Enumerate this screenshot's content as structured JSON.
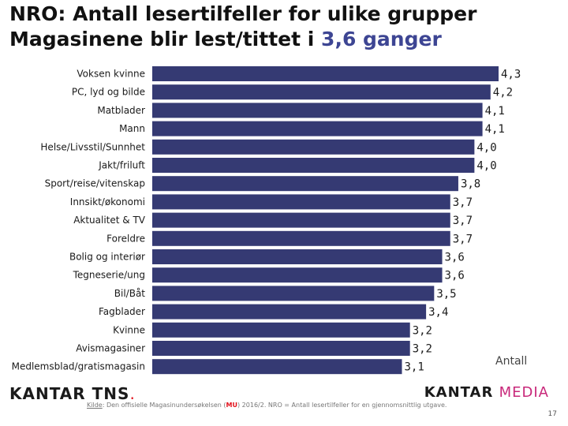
{
  "title": {
    "line1": "NRO: Antall lesertilfeller for ulike grupper",
    "line2_prefix": "Magasinene blir lest/tittet i ",
    "line2_accent": "3,6 ganger"
  },
  "chart_data": {
    "type": "bar",
    "orientation": "horizontal",
    "categories": [
      "Voksen kvinne",
      "PC, lyd og bilde",
      "Matblader",
      "Mann",
      "Helse/Livsstil/Sunnhet",
      "Jakt/friluft",
      "Sport/reise/vitenskap",
      "Innsikt/økonomi",
      "Aktualitet & TV",
      "Foreldre",
      "Bolig og interiør",
      "Tegneserie/ung",
      "Bil/Båt",
      "Fagblader",
      "Kvinne",
      "Avismagasiner",
      "Medlemsblad/gratismagasin"
    ],
    "values": [
      4.3,
      4.2,
      4.1,
      4.1,
      4.0,
      4.0,
      3.8,
      3.7,
      3.7,
      3.7,
      3.6,
      3.6,
      3.5,
      3.4,
      3.2,
      3.2,
      3.1
    ],
    "value_labels": [
      "4,3",
      "4,2",
      "4,1",
      "4,1",
      "4,0",
      "4,0",
      "3,8",
      "3,7",
      "3,7",
      "3,7",
      "3,6",
      "3,6",
      "3,5",
      "3,4",
      "3,2",
      "3,2",
      "3,1"
    ],
    "axis_label": "Antall",
    "bar_color": "#353a73",
    "xlim": [
      0,
      4.3
    ]
  },
  "footer": {
    "logo_left_main": "KANTAR TNS",
    "logo_left_accent": ".",
    "logo_right_main": "KANTAR ",
    "logo_right_accent": "MEDIA",
    "source_key": "Kilde",
    "source_pre": ": Den offisielle Magasinundersøkelsen (",
    "source_mu": "MU",
    "source_post": ") 2016/2. NRO = Antall lesertilfeller for en gjennomsnittlig utgave.",
    "page_number": "17"
  }
}
